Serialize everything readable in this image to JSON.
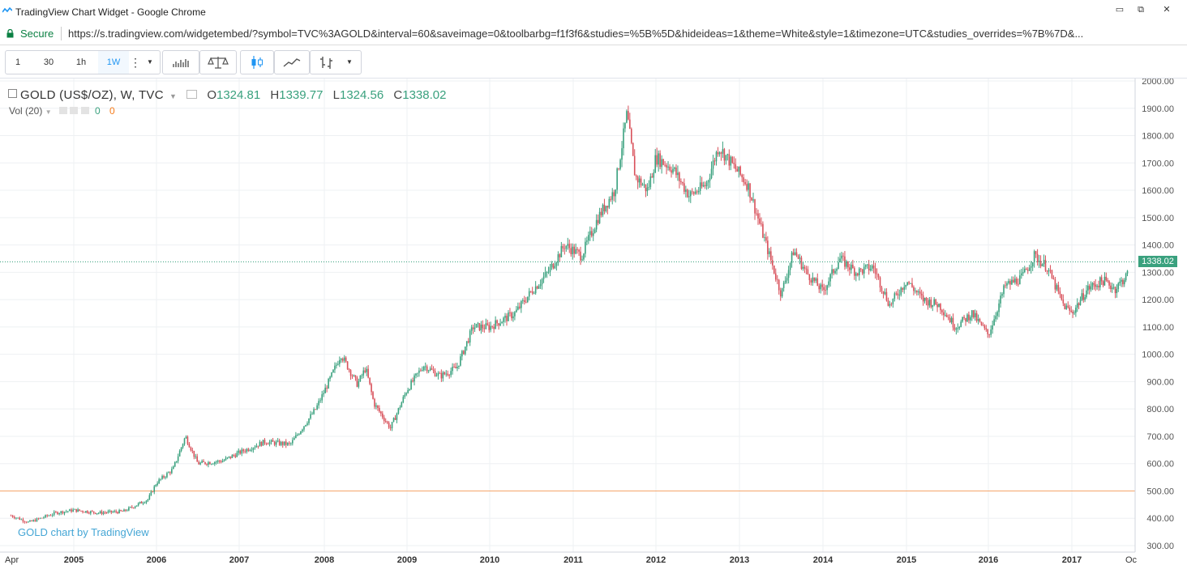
{
  "window": {
    "title": "TradingView Chart Widget - Google Chrome",
    "buttons": [
      "▭",
      "⧉",
      "✕"
    ]
  },
  "address": {
    "secure_label": "Secure",
    "url": "https://s.tradingview.com/widgetembed/?symbol=TVC%3AGOLD&interval=60&saveimage=0&toolbarbg=f1f3f6&studies=%5B%5D&hideideas=1&theme=White&style=1&timezone=UTC&studies_overrides=%7B%7D&..."
  },
  "toolbar": {
    "intervals": [
      "1",
      "30",
      "1h",
      "1W"
    ],
    "active_interval": "1W"
  },
  "legend": {
    "symbol": "GOLD (US$/OZ), W, TVC",
    "open_label": "O",
    "open": "1324.81",
    "high_label": "H",
    "high": "1339.77",
    "low_label": "L",
    "low": "1324.56",
    "close_label": "C",
    "close": "1338.02"
  },
  "volume": {
    "label": "Vol (20)",
    "v1": "0",
    "v2": "0"
  },
  "attribution": "GOLD chart by TradingView",
  "colors": {
    "up": "#3aa17e",
    "down": "#d8505a",
    "price_line": "#3aa17e",
    "h_line": "#f5a56b",
    "grid": "#eef0f3"
  },
  "chart_data": {
    "type": "candlestick",
    "y_axis_ticks": [
      "2000.00",
      "1900.00",
      "1800.00",
      "1700.00",
      "1600.00",
      "1500.00",
      "1400.00",
      "1300.00",
      "1200.00",
      "1100.00",
      "1000.00",
      "900.00",
      "800.00",
      "700.00",
      "600.00",
      "500.00",
      "400.00",
      "300.00"
    ],
    "x_axis_ticks": [
      "Apr",
      "2005",
      "2006",
      "2007",
      "2008",
      "2009",
      "2010",
      "2011",
      "2012",
      "2013",
      "2014",
      "2015",
      "2016",
      "2017",
      "Oc"
    ],
    "ylim": [
      300,
      2000
    ],
    "last_price": "1338.02",
    "horizontal_line": 500,
    "price_path": [
      [
        2004.3,
        410
      ],
      [
        2004.5,
        385
      ],
      [
        2004.8,
        420
      ],
      [
        2005.0,
        430
      ],
      [
        2005.3,
        420
      ],
      [
        2005.6,
        425
      ],
      [
        2005.9,
        470
      ],
      [
        2006.0,
        530
      ],
      [
        2006.2,
        580
      ],
      [
        2006.35,
        700
      ],
      [
        2006.5,
        600
      ],
      [
        2006.8,
        610
      ],
      [
        2007.0,
        640
      ],
      [
        2007.3,
        680
      ],
      [
        2007.6,
        670
      ],
      [
        2007.9,
        800
      ],
      [
        2008.1,
        930
      ],
      [
        2008.2,
        1000
      ],
      [
        2008.4,
        890
      ],
      [
        2008.5,
        950
      ],
      [
        2008.6,
        820
      ],
      [
        2008.8,
        730
      ],
      [
        2009.0,
        870
      ],
      [
        2009.2,
        960
      ],
      [
        2009.4,
        920
      ],
      [
        2009.6,
        950
      ],
      [
        2009.8,
        1100
      ],
      [
        2010.0,
        1100
      ],
      [
        2010.3,
        1150
      ],
      [
        2010.5,
        1230
      ],
      [
        2010.7,
        1300
      ],
      [
        2010.9,
        1400
      ],
      [
        2011.1,
        1360
      ],
      [
        2011.3,
        1500
      ],
      [
        2011.5,
        1600
      ],
      [
        2011.65,
        1880
      ],
      [
        2011.75,
        1650
      ],
      [
        2011.9,
        1600
      ],
      [
        2012.0,
        1720
      ],
      [
        2012.2,
        1680
      ],
      [
        2012.4,
        1580
      ],
      [
        2012.6,
        1620
      ],
      [
        2012.75,
        1760
      ],
      [
        2012.9,
        1700
      ],
      [
        2013.1,
        1620
      ],
      [
        2013.3,
        1420
      ],
      [
        2013.5,
        1220
      ],
      [
        2013.65,
        1380
      ],
      [
        2013.8,
        1300
      ],
      [
        2014.0,
        1230
      ],
      [
        2014.2,
        1350
      ],
      [
        2014.4,
        1300
      ],
      [
        2014.6,
        1320
      ],
      [
        2014.8,
        1180
      ],
      [
        2015.0,
        1270
      ],
      [
        2015.2,
        1200
      ],
      [
        2015.4,
        1180
      ],
      [
        2015.6,
        1100
      ],
      [
        2015.8,
        1150
      ],
      [
        2016.0,
        1070
      ],
      [
        2016.2,
        1250
      ],
      [
        2016.4,
        1280
      ],
      [
        2016.55,
        1360
      ],
      [
        2016.7,
        1320
      ],
      [
        2016.9,
        1180
      ],
      [
        2017.0,
        1150
      ],
      [
        2017.2,
        1240
      ],
      [
        2017.4,
        1270
      ],
      [
        2017.55,
        1240
      ],
      [
        2017.7,
        1290
      ]
    ]
  }
}
